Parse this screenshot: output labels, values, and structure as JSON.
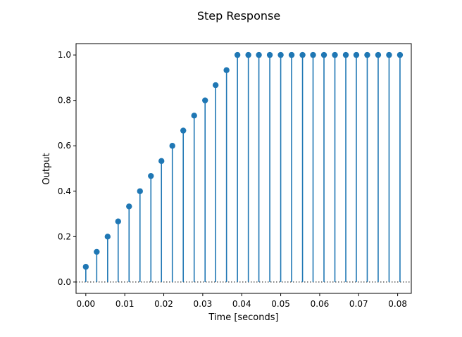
{
  "chart_data": {
    "type": "stem",
    "title": "Step Response",
    "xlabel": "Time [seconds]",
    "ylabel": "Output",
    "xlim": [
      -0.0025,
      0.0835
    ],
    "ylim": [
      -0.05,
      1.05
    ],
    "xticks": [
      0.0,
      0.01,
      0.02,
      0.03,
      0.04,
      0.05,
      0.06,
      0.07,
      0.08
    ],
    "xtick_labels": [
      "0.00",
      "0.01",
      "0.02",
      "0.03",
      "0.04",
      "0.05",
      "0.06",
      "0.07",
      "0.08"
    ],
    "yticks": [
      0.0,
      0.2,
      0.4,
      0.6,
      0.8,
      1.0
    ],
    "ytick_labels": [
      "0.0",
      "0.2",
      "0.4",
      "0.6",
      "0.8",
      "1.0"
    ],
    "baseline": 0.0,
    "baseline_style": "dotted",
    "grid": false,
    "series": [
      {
        "color": "#1f77b4",
        "x": [
          0.0,
          0.0028,
          0.0056,
          0.0083,
          0.0111,
          0.0139,
          0.0167,
          0.0194,
          0.0222,
          0.025,
          0.0278,
          0.0306,
          0.0333,
          0.0361,
          0.0389,
          0.0417,
          0.0444,
          0.0472,
          0.05,
          0.0528,
          0.0556,
          0.0583,
          0.0611,
          0.0639,
          0.0667,
          0.0694,
          0.0722,
          0.075,
          0.0778,
          0.0806
        ],
        "y": [
          0.067,
          0.133,
          0.2,
          0.267,
          0.333,
          0.4,
          0.467,
          0.533,
          0.6,
          0.667,
          0.733,
          0.8,
          0.867,
          0.933,
          1.0,
          1.0,
          1.0,
          1.0,
          1.0,
          1.0,
          1.0,
          1.0,
          1.0,
          1.0,
          1.0,
          1.0,
          1.0,
          1.0,
          1.0,
          1.0
        ]
      }
    ]
  }
}
